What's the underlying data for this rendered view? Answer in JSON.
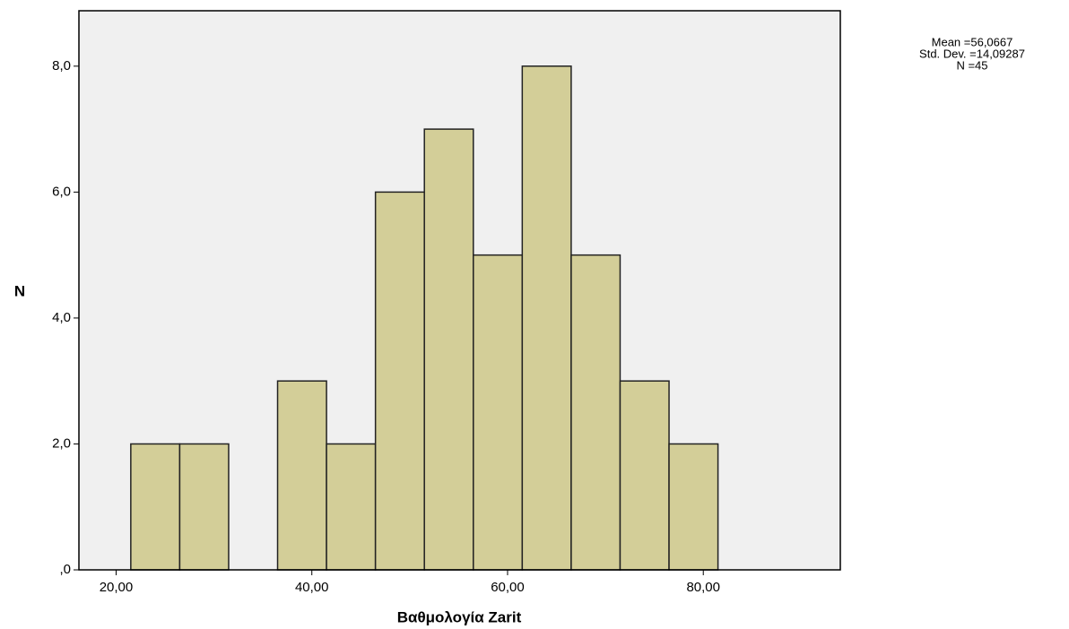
{
  "chart_data": {
    "type": "histogram",
    "x_label": "Βαθμολογία Zarit",
    "y_label": "N",
    "annotations": [
      "Mean =56,0667",
      "Std. Dev. =14,09287",
      "N =45"
    ],
    "bins": [
      21.5,
      26.5,
      31.5,
      36.5,
      41.5,
      46.5,
      51.5,
      56.5,
      61.5,
      66.5,
      71.5,
      76.5,
      81.5
    ],
    "values": [
      2,
      2,
      0,
      3,
      2,
      6,
      7,
      5,
      8,
      5,
      3,
      2
    ],
    "color": "#d3ce98",
    "xlim": [
      16.2,
      94
    ],
    "ylim": [
      0,
      8.88
    ],
    "xticks": [
      {
        "value": 20,
        "label": "20,00"
      },
      {
        "value": 40,
        "label": "40,00"
      },
      {
        "value": 60,
        "label": "60,00"
      },
      {
        "value": 80,
        "label": "80,00"
      }
    ],
    "yticks": [
      {
        "value": 0,
        "label": ",0"
      },
      {
        "value": 2,
        "label": "2,0"
      },
      {
        "value": 4,
        "label": "4,0"
      },
      {
        "value": 6,
        "label": "6,0"
      },
      {
        "value": 8,
        "label": "8,0"
      }
    ]
  }
}
